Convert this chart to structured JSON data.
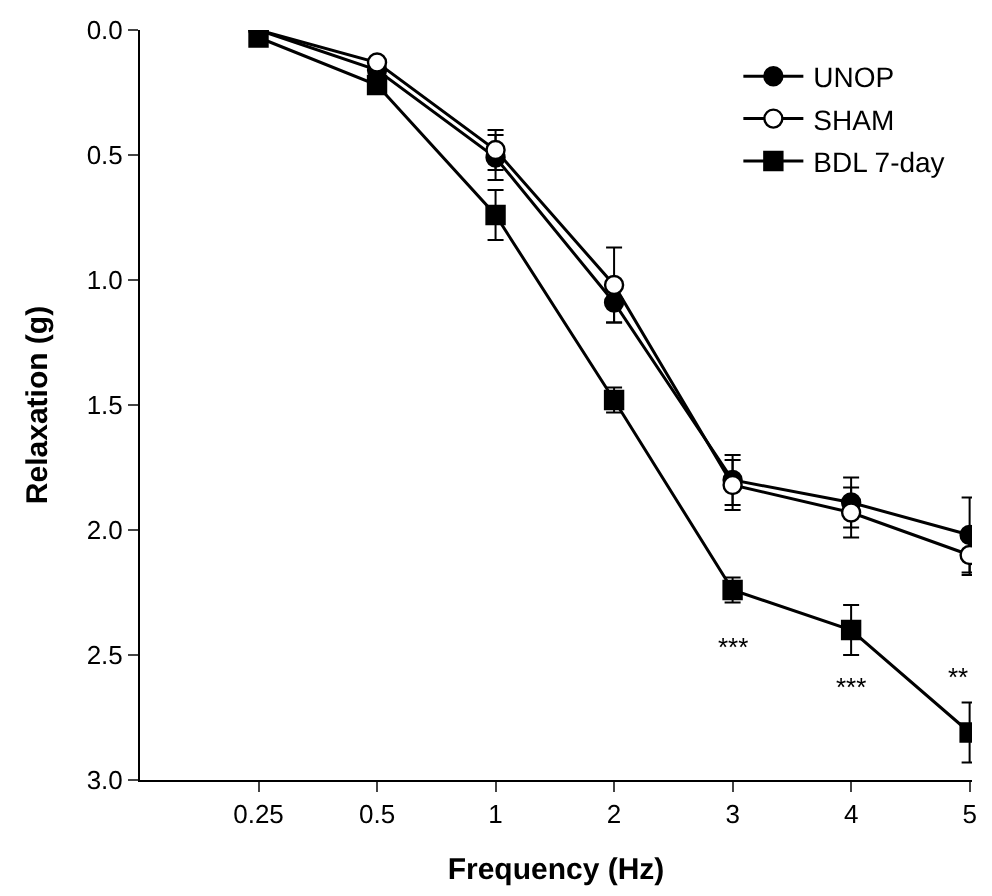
{
  "chart_data": {
    "type": "line",
    "xlabel": "Frequency (Hz)",
    "ylabel": "Relaxation (g)",
    "categories": [
      "0.25",
      "0.5",
      "1",
      "2",
      "3",
      "4",
      "5"
    ],
    "series": [
      {
        "name": "UNOP",
        "color": "#000000",
        "marker": "circle",
        "values": [
          0.0,
          0.16,
          0.51,
          1.09,
          1.8,
          1.89,
          2.02
        ],
        "errors": [
          null,
          null,
          0.09,
          0.08,
          0.1,
          0.1,
          0.15
        ]
      },
      {
        "name": "SHAM",
        "color": "#000000",
        "marker": "circle-open",
        "values": [
          0.0,
          0.13,
          0.48,
          1.02,
          1.82,
          1.93,
          2.1
        ],
        "errors": [
          null,
          null,
          0.08,
          0.15,
          0.1,
          0.1,
          0.08
        ]
      },
      {
        "name": "BDL 7-day",
        "color": "#000000",
        "marker": "square",
        "values": [
          0.03,
          0.22,
          0.74,
          1.48,
          2.24,
          2.4,
          2.81
        ],
        "errors": [
          null,
          null,
          0.1,
          0.05,
          0.05,
          0.1,
          0.12
        ]
      }
    ],
    "ylim": [
      3.0,
      0.0
    ],
    "yticks": [
      {
        "value": 0.0,
        "label": "0.0"
      },
      {
        "value": 0.5,
        "label": "0.5"
      },
      {
        "value": 1.0,
        "label": "1.0"
      },
      {
        "value": 1.5,
        "label": "1.5"
      },
      {
        "value": 2.0,
        "label": "2.0"
      },
      {
        "value": 2.5,
        "label": "2.5"
      },
      {
        "value": 3.0,
        "label": "3.0"
      }
    ],
    "annotations": [
      {
        "text": "***",
        "x": "3",
        "y": 2.24
      },
      {
        "text": "***",
        "x": "4",
        "y": 2.4
      },
      {
        "text": "**",
        "x": "5",
        "y": 2.81
      }
    ],
    "legend": "top right",
    "line_style": "solid"
  }
}
